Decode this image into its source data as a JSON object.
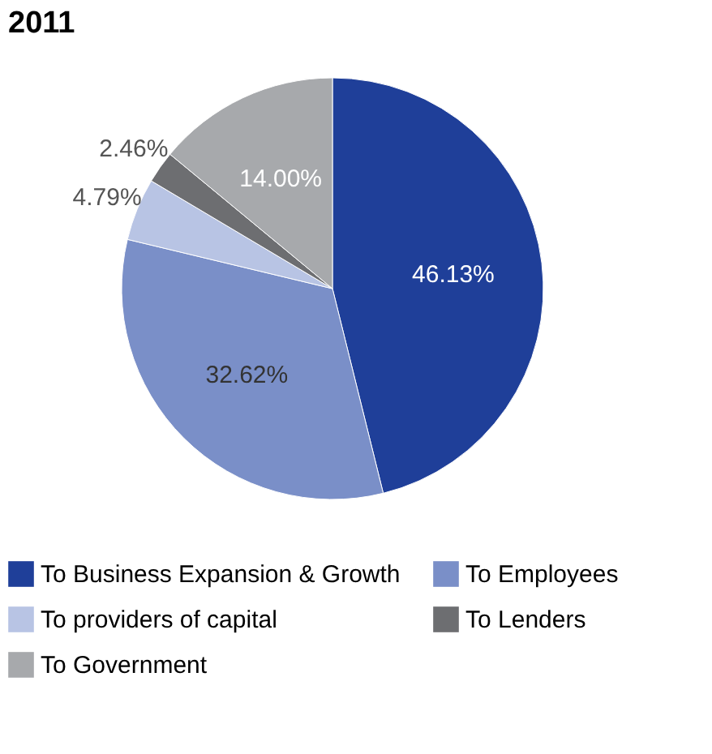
{
  "chart_data": {
    "type": "pie",
    "title": "2011",
    "categories": [
      "To Business Expansion & Growth",
      "To Employees",
      "To providers of capital",
      "To Lenders",
      "To Government"
    ],
    "values": [
      46.13,
      32.62,
      4.79,
      2.46,
      14.0
    ],
    "colors": [
      "#1f3f99",
      "#7a8fc8",
      "#b8c4e4",
      "#6d6e71",
      "#a7a9ac"
    ],
    "value_labels": [
      "46.13%",
      "32.62%",
      "4.79%",
      "2.46%",
      "14.00%"
    ],
    "legend": "bottom"
  }
}
